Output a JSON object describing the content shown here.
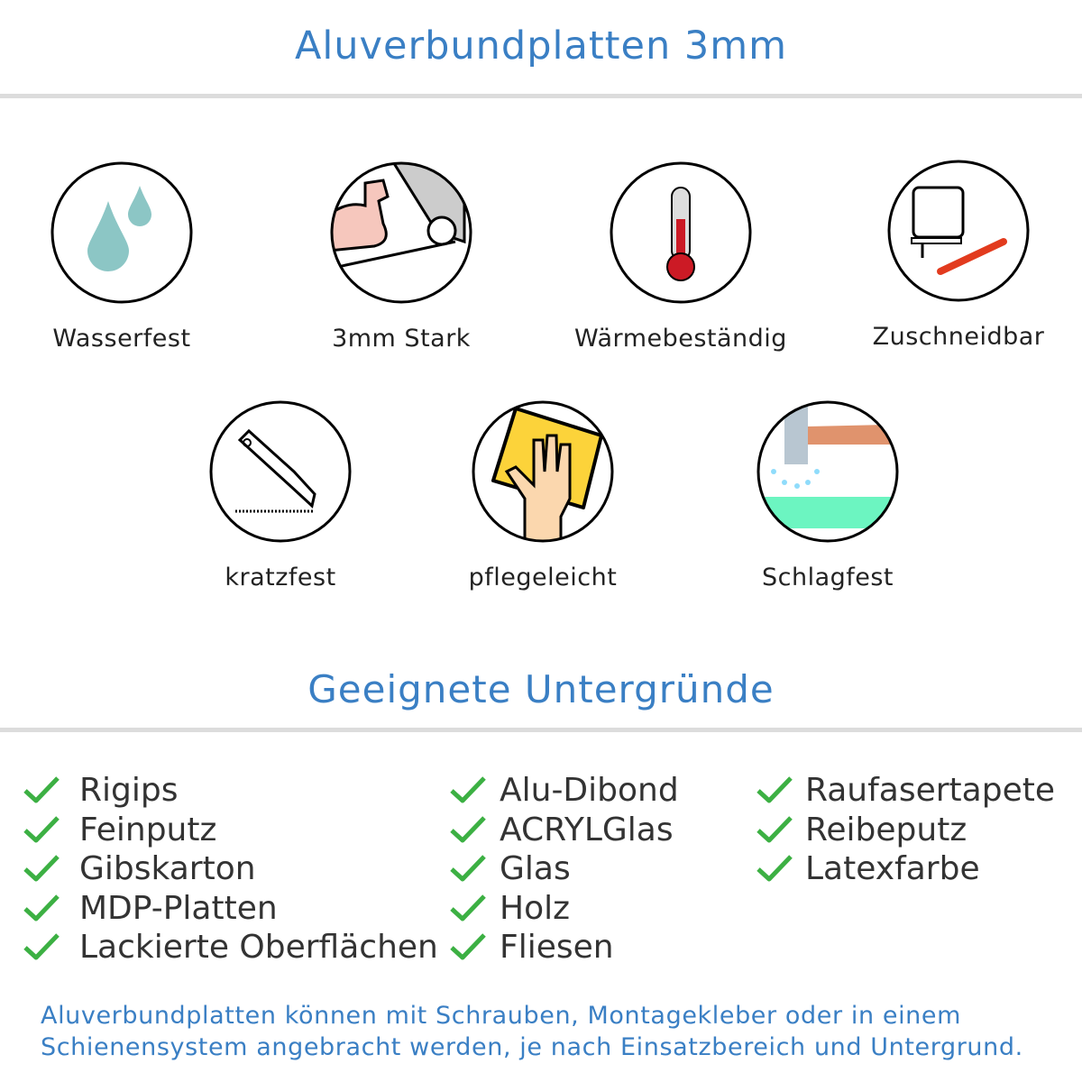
{
  "header": {
    "title": "Aluverbundplatten 3mm"
  },
  "features": [
    {
      "label": "Wasserfest",
      "icon": "water-drops-icon"
    },
    {
      "label": "3mm Stark",
      "icon": "strong-arm-icon"
    },
    {
      "label": "Wärmebeständig",
      "icon": "thermometer-icon"
    },
    {
      "label": "Zuschneidbar",
      "icon": "jigsaw-cutter-icon"
    },
    {
      "label": "kratzfest",
      "icon": "utility-knife-icon"
    },
    {
      "label": "pflegeleicht",
      "icon": "cleaning-hand-icon"
    },
    {
      "label": "Schlagfest",
      "icon": "hammer-icon"
    }
  ],
  "surfaces": {
    "title": "Geeignete Untergründe",
    "columns": [
      [
        "Rigips",
        "Feinputz",
        "Gibskarton",
        "MDP-Platten",
        "Lackierte Oberflächen"
      ],
      [
        "Alu-Dibond",
        "ACRYLGlas",
        "Glas",
        "Holz",
        "Fliesen"
      ],
      [
        "Raufasertapete",
        "Reibeputz",
        "Latexfarbe"
      ]
    ]
  },
  "footer": {
    "line1": "Aluverbundplatten können mit Schrauben, Montagekleber oder in einem",
    "line2": "Schienensystem angebracht werden, je nach Einsatzbereich und Untergrund."
  },
  "colors": {
    "accent": "#3a7fc4",
    "check": "#3cb043",
    "rule": "#dcdcdc"
  }
}
